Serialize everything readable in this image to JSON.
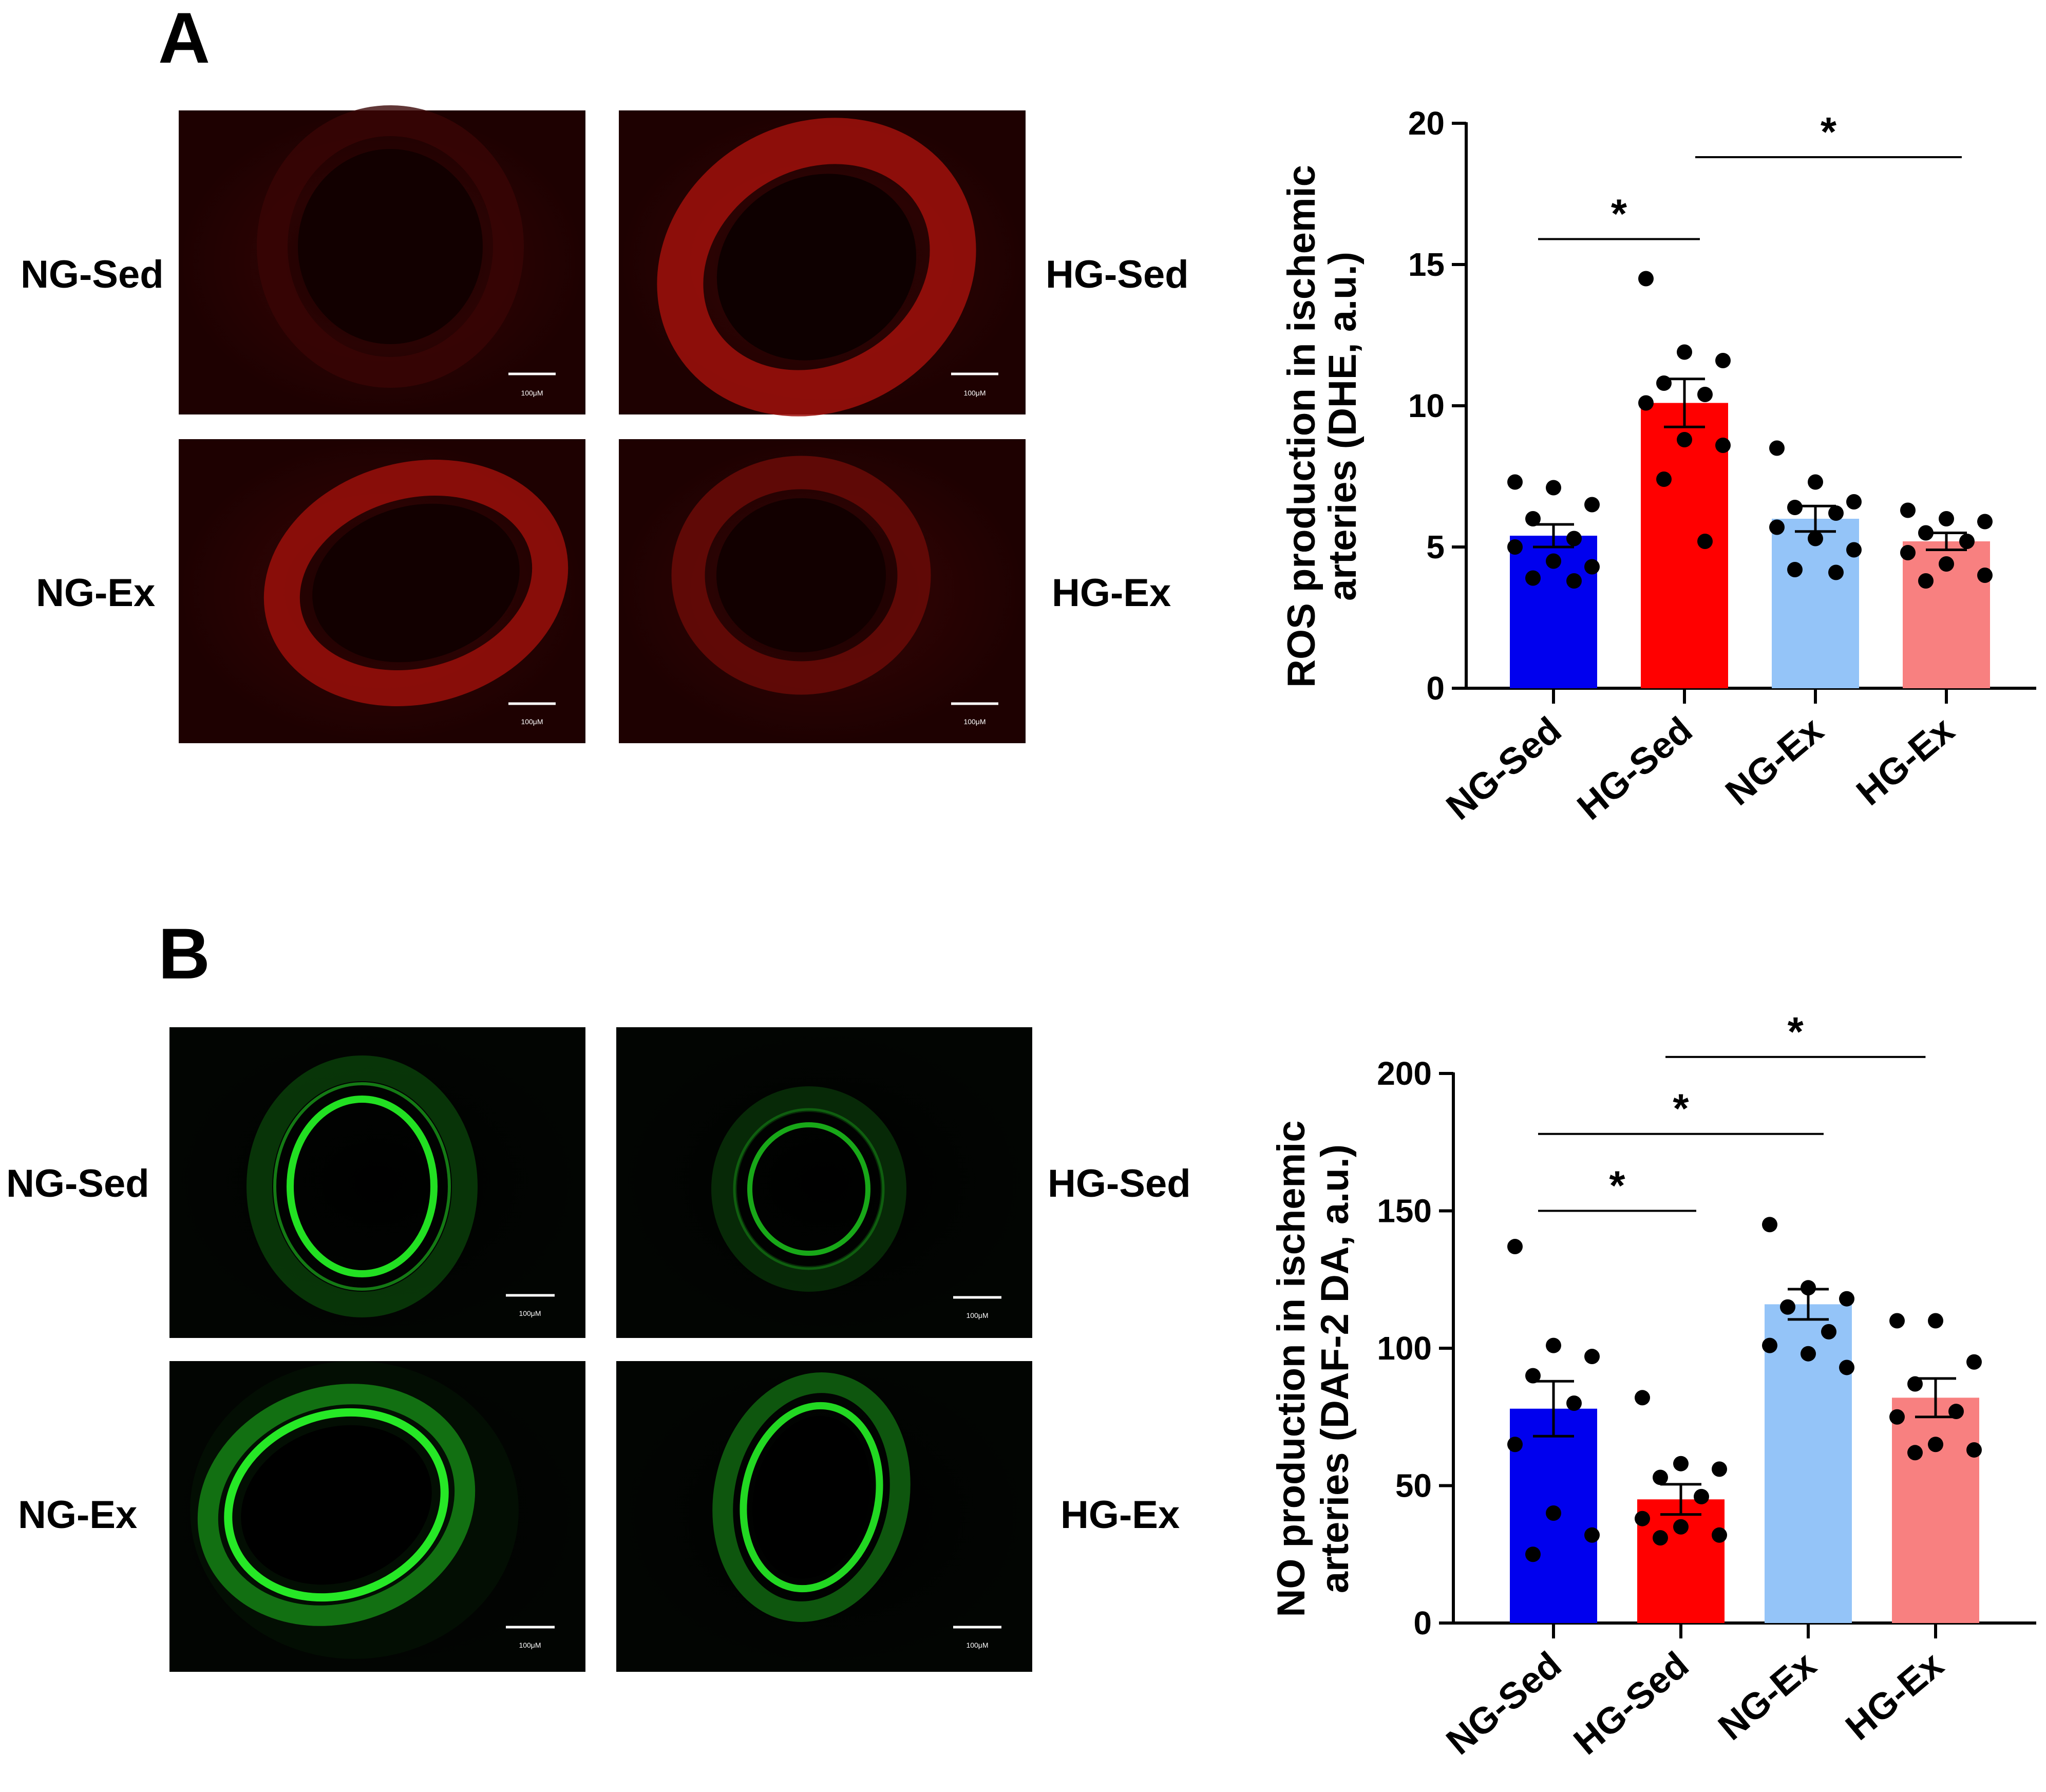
{
  "panels": [
    {
      "letter": "A",
      "micrographs": {
        "stain_color": "#e11a12",
        "labels": [
          "NG-Sed",
          "HG-Sed",
          "NG-Ex",
          "HG-Ex"
        ],
        "scale_bar_text": "100μM"
      }
    },
    {
      "letter": "B",
      "micrographs": {
        "stain_color": "#1fd31f",
        "labels": [
          "NG-Sed",
          "HG-Sed",
          "NG-Ex",
          "HG-Ex"
        ],
        "scale_bar_text": "100μM"
      }
    }
  ],
  "chart_data": [
    {
      "type": "bar",
      "ylabel_lines": [
        "ROS production in ischemic",
        "arteries (DHE, a.u.)"
      ],
      "categories": [
        "NG-Sed",
        "HG-Sed",
        "NG-Ex",
        "HG-Ex"
      ],
      "values": [
        5.4,
        10.1,
        6.0,
        5.2
      ],
      "sem": [
        0.4,
        0.85,
        0.45,
        0.3
      ],
      "colors": [
        "#0000ee",
        "#ff0000",
        "#94c4f8",
        "#f88080"
      ],
      "ylim": [
        0,
        20
      ],
      "yticks": [
        0,
        5,
        10,
        15,
        20
      ],
      "points": [
        [
          7.3,
          7.1,
          6.5,
          6.0,
          5.3,
          5.0,
          4.5,
          4.3,
          3.9,
          3.8
        ],
        [
          14.5,
          11.9,
          11.6,
          10.8,
          10.4,
          10.1,
          8.8,
          8.6,
          7.4,
          5.2
        ],
        [
          8.5,
          7.3,
          6.6,
          6.4,
          6.2,
          5.7,
          5.3,
          4.9,
          4.2,
          4.1
        ],
        [
          6.3,
          6.0,
          5.9,
          5.5,
          5.2,
          4.8,
          4.4,
          4.0,
          3.8
        ]
      ],
      "significance": [
        {
          "from": 0,
          "to": 1,
          "y": 15.9,
          "label": "*"
        },
        {
          "from": 1.2,
          "to": 3,
          "y": 18.8,
          "label": "*"
        }
      ]
    },
    {
      "type": "bar",
      "ylabel_lines": [
        "NO production in ischemic",
        "arteries (DAF-2 DA, a.u.)"
      ],
      "categories": [
        "NG-Sed",
        "HG-Sed",
        "NG-Ex",
        "HG-Ex"
      ],
      "values": [
        78,
        45,
        116,
        82
      ],
      "sem": [
        10,
        5.5,
        5.5,
        7
      ],
      "colors": [
        "#0000ee",
        "#ff0000",
        "#94c4f8",
        "#f88080"
      ],
      "ylim": [
        0,
        200
      ],
      "yticks": [
        0,
        50,
        100,
        150,
        200
      ],
      "points": [
        [
          137,
          101,
          97,
          90,
          80,
          65,
          40,
          32,
          25
        ],
        [
          82,
          58,
          56,
          53,
          46,
          38,
          35,
          32,
          31
        ],
        [
          145,
          122,
          118,
          115,
          106,
          101,
          98,
          93
        ],
        [
          110,
          110,
          95,
          87,
          77,
          75,
          65,
          63,
          62
        ]
      ],
      "significance": [
        {
          "from": 0,
          "to": 1,
          "y": 150,
          "label": "*"
        },
        {
          "from": 0,
          "to": 2,
          "y": 178,
          "label": "*"
        },
        {
          "from": 1,
          "to": 2.8,
          "y": 206,
          "label": "*"
        }
      ]
    }
  ]
}
